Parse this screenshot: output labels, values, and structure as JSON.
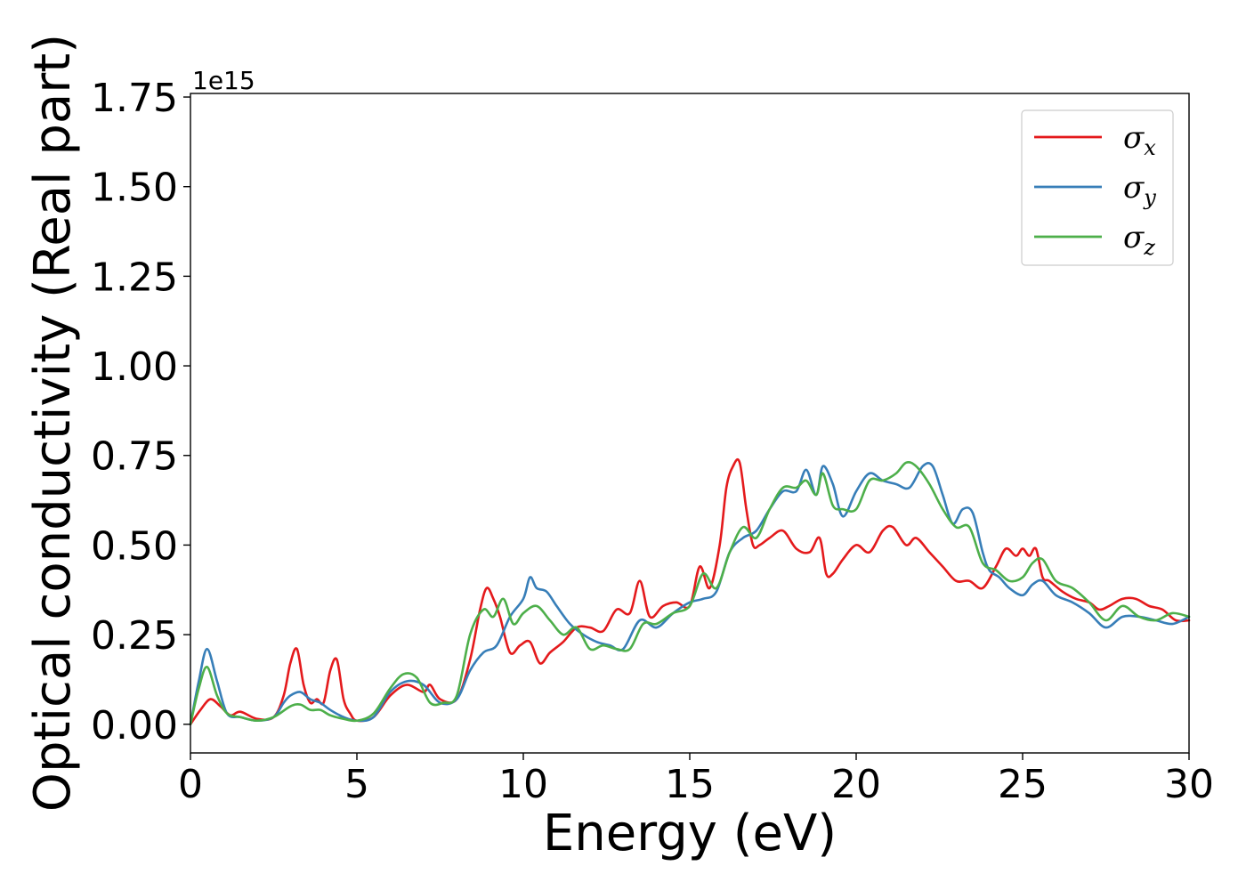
{
  "chart_data": {
    "type": "line",
    "xlabel": "Energy (eV)",
    "ylabel": "Optical conductivity (Real part)",
    "y_offset_label": "1e15",
    "xlim": [
      0,
      30
    ],
    "ylim": [
      -0.08,
      1.76
    ],
    "x_ticks": [
      0,
      5,
      10,
      15,
      20,
      25,
      30
    ],
    "x_tick_labels": [
      "0",
      "5",
      "10",
      "15",
      "20",
      "25",
      "30"
    ],
    "y_ticks": [
      0.0,
      0.25,
      0.5,
      0.75,
      1.0,
      1.25,
      1.5,
      1.75
    ],
    "y_tick_labels": [
      "0.00",
      "0.25",
      "0.50",
      "0.75",
      "1.00",
      "1.25",
      "1.50",
      "1.75"
    ],
    "grid": false,
    "legend_position": "top-right",
    "series": [
      {
        "name": "σx",
        "legend_base": "σ",
        "legend_sub": "x",
        "color": "#e41a1c",
        "x": [
          0,
          0.3,
          0.6,
          0.9,
          1.2,
          1.5,
          2.0,
          2.5,
          2.8,
          3.0,
          3.2,
          3.4,
          3.6,
          3.8,
          4.0,
          4.2,
          4.4,
          4.6,
          4.8,
          5.0,
          5.5,
          6.0,
          6.5,
          7.0,
          7.2,
          7.5,
          8.0,
          8.4,
          8.7,
          8.9,
          9.1,
          9.3,
          9.6,
          9.9,
          10.2,
          10.5,
          10.8,
          11.2,
          11.6,
          12.0,
          12.4,
          12.8,
          13.2,
          13.5,
          13.8,
          14.2,
          14.6,
          15.0,
          15.3,
          15.6,
          15.9,
          16.1,
          16.3,
          16.5,
          16.7,
          16.9,
          17.1,
          17.4,
          17.8,
          18.2,
          18.6,
          18.9,
          19.1,
          19.3,
          19.6,
          20.0,
          20.4,
          20.8,
          21.1,
          21.5,
          21.8,
          22.2,
          22.6,
          23.0,
          23.4,
          23.8,
          24.2,
          24.5,
          24.8,
          25.0,
          25.2,
          25.4,
          25.6,
          25.8,
          26.2,
          26.6,
          27.0,
          27.3,
          27.6,
          28.0,
          28.4,
          28.8,
          29.2,
          29.6,
          30
        ],
        "values": [
          0.0,
          0.04,
          0.07,
          0.05,
          0.025,
          0.035,
          0.015,
          0.02,
          0.08,
          0.17,
          0.21,
          0.11,
          0.06,
          0.07,
          0.06,
          0.15,
          0.18,
          0.07,
          0.03,
          0.01,
          0.02,
          0.08,
          0.11,
          0.09,
          0.11,
          0.07,
          0.07,
          0.18,
          0.32,
          0.38,
          0.35,
          0.3,
          0.2,
          0.22,
          0.23,
          0.17,
          0.2,
          0.23,
          0.27,
          0.27,
          0.26,
          0.32,
          0.31,
          0.4,
          0.3,
          0.33,
          0.34,
          0.33,
          0.44,
          0.38,
          0.5,
          0.66,
          0.72,
          0.73,
          0.6,
          0.5,
          0.5,
          0.52,
          0.54,
          0.49,
          0.48,
          0.52,
          0.42,
          0.42,
          0.46,
          0.5,
          0.48,
          0.54,
          0.55,
          0.5,
          0.52,
          0.48,
          0.44,
          0.4,
          0.4,
          0.38,
          0.44,
          0.49,
          0.47,
          0.49,
          0.47,
          0.49,
          0.41,
          0.4,
          0.37,
          0.35,
          0.34,
          0.32,
          0.33,
          0.35,
          0.35,
          0.33,
          0.32,
          0.29,
          0.29
        ]
      },
      {
        "name": "σy",
        "legend_base": "σ",
        "legend_sub": "y",
        "color": "#377eb8",
        "x": [
          0,
          0.25,
          0.5,
          0.8,
          1.1,
          1.5,
          2.0,
          2.5,
          2.8,
          3.0,
          3.3,
          3.6,
          3.9,
          4.2,
          4.6,
          5.0,
          5.5,
          6.0,
          6.5,
          7.0,
          7.5,
          8.0,
          8.4,
          8.8,
          9.2,
          9.6,
          10.0,
          10.2,
          10.4,
          10.7,
          11.0,
          11.4,
          11.8,
          12.2,
          12.6,
          13.0,
          13.5,
          14.0,
          14.5,
          15.0,
          15.4,
          15.8,
          16.2,
          16.6,
          17.0,
          17.4,
          17.8,
          18.2,
          18.5,
          18.8,
          19.0,
          19.3,
          19.6,
          20.0,
          20.4,
          20.8,
          21.2,
          21.6,
          22.0,
          22.3,
          22.6,
          22.9,
          23.2,
          23.5,
          23.8,
          24.0,
          24.3,
          24.6,
          25.0,
          25.3,
          25.6,
          26.0,
          26.5,
          27.0,
          27.5,
          28.0,
          28.5,
          29.0,
          29.5,
          30
        ],
        "values": [
          0.0,
          0.12,
          0.21,
          0.12,
          0.03,
          0.02,
          0.01,
          0.02,
          0.06,
          0.08,
          0.09,
          0.07,
          0.06,
          0.04,
          0.02,
          0.01,
          0.02,
          0.09,
          0.12,
          0.11,
          0.06,
          0.07,
          0.15,
          0.2,
          0.22,
          0.3,
          0.35,
          0.41,
          0.38,
          0.37,
          0.33,
          0.28,
          0.25,
          0.23,
          0.22,
          0.21,
          0.29,
          0.27,
          0.31,
          0.34,
          0.35,
          0.37,
          0.48,
          0.52,
          0.54,
          0.6,
          0.65,
          0.65,
          0.71,
          0.64,
          0.72,
          0.67,
          0.58,
          0.65,
          0.7,
          0.68,
          0.67,
          0.66,
          0.72,
          0.72,
          0.64,
          0.56,
          0.6,
          0.59,
          0.48,
          0.43,
          0.41,
          0.38,
          0.36,
          0.39,
          0.4,
          0.36,
          0.34,
          0.31,
          0.27,
          0.3,
          0.3,
          0.29,
          0.28,
          0.3
        ]
      },
      {
        "name": "σz",
        "legend_base": "σ",
        "legend_sub": "z",
        "color": "#4daf4a",
        "x": [
          0,
          0.25,
          0.5,
          0.8,
          1.1,
          1.5,
          2.0,
          2.5,
          3.0,
          3.3,
          3.6,
          3.9,
          4.2,
          4.6,
          5.0,
          5.5,
          6.0,
          6.4,
          6.8,
          7.2,
          7.6,
          8.0,
          8.4,
          8.8,
          9.1,
          9.4,
          9.7,
          10.0,
          10.4,
          10.8,
          11.2,
          11.6,
          12.0,
          12.4,
          12.8,
          13.2,
          13.6,
          14.0,
          14.5,
          15.0,
          15.4,
          15.8,
          16.2,
          16.6,
          17.0,
          17.4,
          17.8,
          18.2,
          18.5,
          18.8,
          19.0,
          19.3,
          19.6,
          20.0,
          20.4,
          20.8,
          21.2,
          21.5,
          21.8,
          22.2,
          22.6,
          23.0,
          23.4,
          23.8,
          24.2,
          24.6,
          25.0,
          25.3,
          25.6,
          26.0,
          26.5,
          27.0,
          27.5,
          28.0,
          28.5,
          29.0,
          29.5,
          30
        ],
        "values": [
          0.0,
          0.1,
          0.16,
          0.08,
          0.03,
          0.02,
          0.01,
          0.02,
          0.05,
          0.055,
          0.04,
          0.04,
          0.025,
          0.015,
          0.01,
          0.03,
          0.1,
          0.14,
          0.13,
          0.06,
          0.06,
          0.08,
          0.25,
          0.32,
          0.3,
          0.35,
          0.28,
          0.31,
          0.33,
          0.29,
          0.25,
          0.27,
          0.21,
          0.22,
          0.21,
          0.21,
          0.28,
          0.28,
          0.31,
          0.33,
          0.42,
          0.38,
          0.48,
          0.55,
          0.52,
          0.6,
          0.66,
          0.66,
          0.68,
          0.64,
          0.7,
          0.61,
          0.6,
          0.6,
          0.68,
          0.68,
          0.7,
          0.73,
          0.72,
          0.67,
          0.6,
          0.55,
          0.55,
          0.45,
          0.43,
          0.4,
          0.41,
          0.45,
          0.46,
          0.4,
          0.38,
          0.34,
          0.29,
          0.33,
          0.3,
          0.29,
          0.31,
          0.3
        ]
      }
    ]
  }
}
